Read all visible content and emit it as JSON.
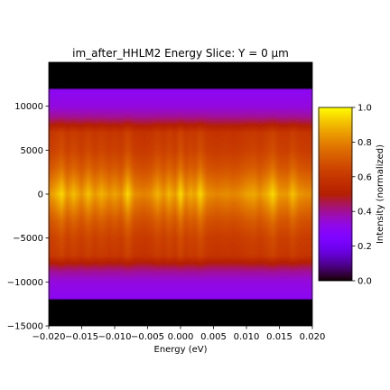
{
  "chart_data": {
    "type": "heatmap",
    "title": "im_after_HHLM2 Energy Slice: Y = 0 µm",
    "xlabel": "Energy (eV)",
    "ylabel": "",
    "xlim": [
      -0.02,
      0.02
    ],
    "ylim": [
      -15000,
      15000
    ],
    "x_ticks": [
      -0.02,
      -0.015,
      -0.01,
      -0.005,
      0.0,
      0.005,
      0.01,
      0.015,
      0.02
    ],
    "x_tick_labels": [
      "−0.020",
      "−0.015",
      "−0.010",
      "−0.005",
      "0.000",
      "0.005",
      "0.010",
      "0.015",
      "0.020"
    ],
    "y_ticks": [
      -15000,
      -10000,
      -5000,
      0,
      5000,
      10000
    ],
    "y_tick_labels": [
      "−15000",
      "−10000",
      "−5000",
      "0",
      "5000",
      "10000"
    ],
    "colormap": "gnuplot",
    "colorbar": {
      "label": "Intensity (normalized)",
      "range": [
        0,
        1
      ],
      "ticks": [
        0.0,
        0.2,
        0.4,
        0.6,
        0.8,
        1.0
      ],
      "tick_labels": [
        "0.0",
        "0.2",
        "0.4",
        "0.6",
        "0.8",
        "1.0"
      ]
    },
    "beam_profile": {
      "y_edges": [
        -12000,
        12000
      ],
      "y_profile": [
        {
          "y": -15000,
          "v": 0.0
        },
        {
          "y": -12000,
          "v": 0.0
        },
        {
          "y": -11900,
          "v": 0.3
        },
        {
          "y": -10000,
          "v": 0.33
        },
        {
          "y": -8800,
          "v": 0.4
        },
        {
          "y": -7800,
          "v": 0.5
        },
        {
          "y": -7000,
          "v": 0.6
        },
        {
          "y": -5000,
          "v": 0.63
        },
        {
          "y": -3000,
          "v": 0.7
        },
        {
          "y": -1000,
          "v": 0.8
        },
        {
          "y": 0,
          "v": 0.85
        },
        {
          "y": 1000,
          "v": 0.8
        },
        {
          "y": 3000,
          "v": 0.7
        },
        {
          "y": 5000,
          "v": 0.63
        },
        {
          "y": 7000,
          "v": 0.6
        },
        {
          "y": 7800,
          "v": 0.5
        },
        {
          "y": 8800,
          "v": 0.4
        },
        {
          "y": 10000,
          "v": 0.33
        },
        {
          "y": 11900,
          "v": 0.3
        },
        {
          "y": 12000,
          "v": 0.0
        },
        {
          "y": 15000,
          "v": 0.0
        }
      ],
      "energy_factor": [
        {
          "e": -0.02,
          "f": 0.97
        },
        {
          "e": -0.019,
          "f": 1.04
        },
        {
          "e": -0.018,
          "f": 1.12
        },
        {
          "e": -0.0172,
          "f": 1.0
        },
        {
          "e": -0.0162,
          "f": 1.07
        },
        {
          "e": -0.015,
          "f": 0.98
        },
        {
          "e": -0.014,
          "f": 1.08
        },
        {
          "e": -0.013,
          "f": 0.99
        },
        {
          "e": -0.012,
          "f": 1.05
        },
        {
          "e": -0.0108,
          "f": 0.98
        },
        {
          "e": -0.01,
          "f": 1.02
        },
        {
          "e": -0.009,
          "f": 0.97
        },
        {
          "e": -0.008,
          "f": 1.12
        },
        {
          "e": -0.007,
          "f": 0.97
        },
        {
          "e": -0.0055,
          "f": 0.94
        },
        {
          "e": -0.0045,
          "f": 0.97
        },
        {
          "e": -0.0035,
          "f": 1.05
        },
        {
          "e": -0.0025,
          "f": 0.98
        },
        {
          "e": -0.0018,
          "f": 1.06
        },
        {
          "e": -0.0008,
          "f": 0.99
        },
        {
          "e": 0.0,
          "f": 1.13
        },
        {
          "e": 0.0008,
          "f": 0.99
        },
        {
          "e": 0.0015,
          "f": 1.04
        },
        {
          "e": 0.0022,
          "f": 1.01
        },
        {
          "e": 0.003,
          "f": 1.12
        },
        {
          "e": 0.004,
          "f": 0.98
        },
        {
          "e": 0.0055,
          "f": 0.95
        },
        {
          "e": 0.007,
          "f": 0.97
        },
        {
          "e": 0.008,
          "f": 0.95
        },
        {
          "e": 0.009,
          "f": 0.97
        },
        {
          "e": 0.01,
          "f": 1.01
        },
        {
          "e": 0.0112,
          "f": 1.03
        },
        {
          "e": 0.012,
          "f": 0.98
        },
        {
          "e": 0.0132,
          "f": 1.05
        },
        {
          "e": 0.014,
          "f": 1.12
        },
        {
          "e": 0.015,
          "f": 1.0
        },
        {
          "e": 0.0162,
          "f": 0.99
        },
        {
          "e": 0.017,
          "f": 1.08
        },
        {
          "e": 0.018,
          "f": 0.99
        },
        {
          "e": 0.019,
          "f": 0.97
        },
        {
          "e": 0.02,
          "f": 0.96
        }
      ]
    }
  }
}
